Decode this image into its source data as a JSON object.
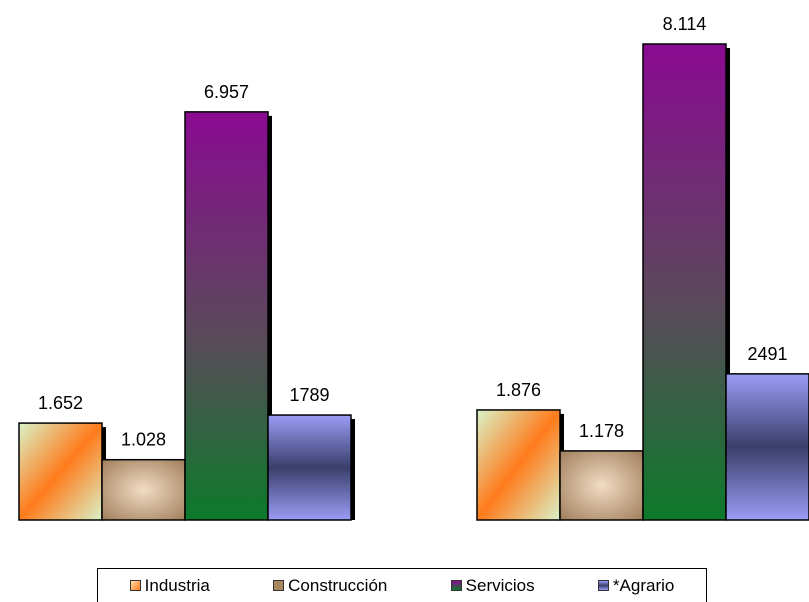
{
  "chart_data": {
    "type": "bar",
    "title": "",
    "xlabel": "",
    "ylabel": "",
    "categories": [
      "",
      ""
    ],
    "series": [
      {
        "name": "Industria",
        "values": [
          1652,
          1876
        ],
        "labels": [
          "1.652",
          "1.876"
        ],
        "color": "#f57a2f"
      },
      {
        "name": "Construcción",
        "values": [
          1028,
          1178
        ],
        "labels": [
          "1.028",
          "1.178"
        ],
        "color": "#b08a66"
      },
      {
        "name": "Servicios",
        "values": [
          6957,
          8114
        ],
        "labels": [
          "6.957",
          "8.114"
        ],
        "color": "#7a1a88"
      },
      {
        "name": "*Agrario",
        "values": [
          1789,
          2491
        ],
        "labels": [
          "1789",
          "2491"
        ],
        "color": "#6b6ecc"
      }
    ],
    "ylim": [
      0,
      8114
    ],
    "grid": false,
    "legend": "bottom"
  }
}
